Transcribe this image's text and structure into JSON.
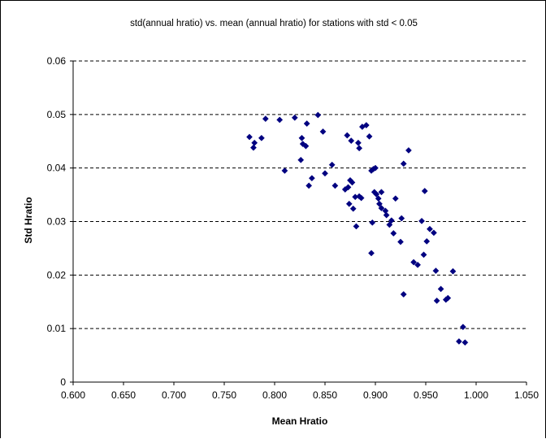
{
  "chart_data": {
    "type": "scatter",
    "title": "std(annual hratio) vs. mean (annual hratio) for stations with std < 0.05",
    "xlabel": "Mean Hratio",
    "ylabel": "Std Hratio",
    "xlim": [
      0.6,
      1.05
    ],
    "ylim": [
      0,
      0.06
    ],
    "x_ticks": [
      "0.600",
      "0.650",
      "0.700",
      "0.750",
      "0.800",
      "0.850",
      "0.900",
      "0.950",
      "1.000",
      "1.050"
    ],
    "y_ticks": [
      "0",
      "0.01",
      "0.02",
      "0.03",
      "0.04",
      "0.05",
      "0.06"
    ],
    "grid": "horizontal dashed",
    "marker": "diamond",
    "marker_color": "#000080",
    "points": [
      [
        0.775,
        0.0458
      ],
      [
        0.779,
        0.0438
      ],
      [
        0.78,
        0.0447
      ],
      [
        0.787,
        0.0456
      ],
      [
        0.791,
        0.0492
      ],
      [
        0.805,
        0.049
      ],
      [
        0.81,
        0.0395
      ],
      [
        0.82,
        0.0494
      ],
      [
        0.826,
        0.0415
      ],
      [
        0.827,
        0.0456
      ],
      [
        0.828,
        0.0445
      ],
      [
        0.831,
        0.0441
      ],
      [
        0.832,
        0.0483
      ],
      [
        0.834,
        0.0367
      ],
      [
        0.837,
        0.0381
      ],
      [
        0.843,
        0.0499
      ],
      [
        0.848,
        0.0468
      ],
      [
        0.85,
        0.039
      ],
      [
        0.857,
        0.0406
      ],
      [
        0.86,
        0.0367
      ],
      [
        0.87,
        0.036
      ],
      [
        0.872,
        0.0461
      ],
      [
        0.873,
        0.0364
      ],
      [
        0.874,
        0.0333
      ],
      [
        0.875,
        0.0377
      ],
      [
        0.876,
        0.0451
      ],
      [
        0.877,
        0.0373
      ],
      [
        0.878,
        0.0324
      ],
      [
        0.88,
        0.0346
      ],
      [
        0.881,
        0.0291
      ],
      [
        0.883,
        0.0447
      ],
      [
        0.884,
        0.0437
      ],
      [
        0.884,
        0.0347
      ],
      [
        0.886,
        0.0344
      ],
      [
        0.887,
        0.0477
      ],
      [
        0.891,
        0.048
      ],
      [
        0.894,
        0.0459
      ],
      [
        0.896,
        0.0395
      ],
      [
        0.896,
        0.0241
      ],
      [
        0.897,
        0.0298
      ],
      [
        0.898,
        0.0398
      ],
      [
        0.899,
        0.0355
      ],
      [
        0.9,
        0.04
      ],
      [
        0.901,
        0.0351
      ],
      [
        0.903,
        0.0343
      ],
      [
        0.904,
        0.0333
      ],
      [
        0.906,
        0.0355
      ],
      [
        0.906,
        0.0325
      ],
      [
        0.91,
        0.032
      ],
      [
        0.911,
        0.0312
      ],
      [
        0.914,
        0.0294
      ],
      [
        0.916,
        0.0302
      ],
      [
        0.918,
        0.0278
      ],
      [
        0.92,
        0.0343
      ],
      [
        0.925,
        0.0262
      ],
      [
        0.926,
        0.0306
      ],
      [
        0.928,
        0.0408
      ],
      [
        0.928,
        0.0164
      ],
      [
        0.933,
        0.0433
      ],
      [
        0.938,
        0.0224
      ],
      [
        0.942,
        0.0219
      ],
      [
        0.946,
        0.0301
      ],
      [
        0.948,
        0.0238
      ],
      [
        0.949,
        0.0357
      ],
      [
        0.951,
        0.0263
      ],
      [
        0.954,
        0.0286
      ],
      [
        0.958,
        0.0279
      ],
      [
        0.96,
        0.0208
      ],
      [
        0.961,
        0.0152
      ],
      [
        0.965,
        0.0174
      ],
      [
        0.97,
        0.0154
      ],
      [
        0.972,
        0.0157
      ],
      [
        0.977,
        0.0207
      ],
      [
        0.983,
        0.0076
      ],
      [
        0.987,
        0.0103
      ],
      [
        0.989,
        0.0074
      ]
    ]
  }
}
